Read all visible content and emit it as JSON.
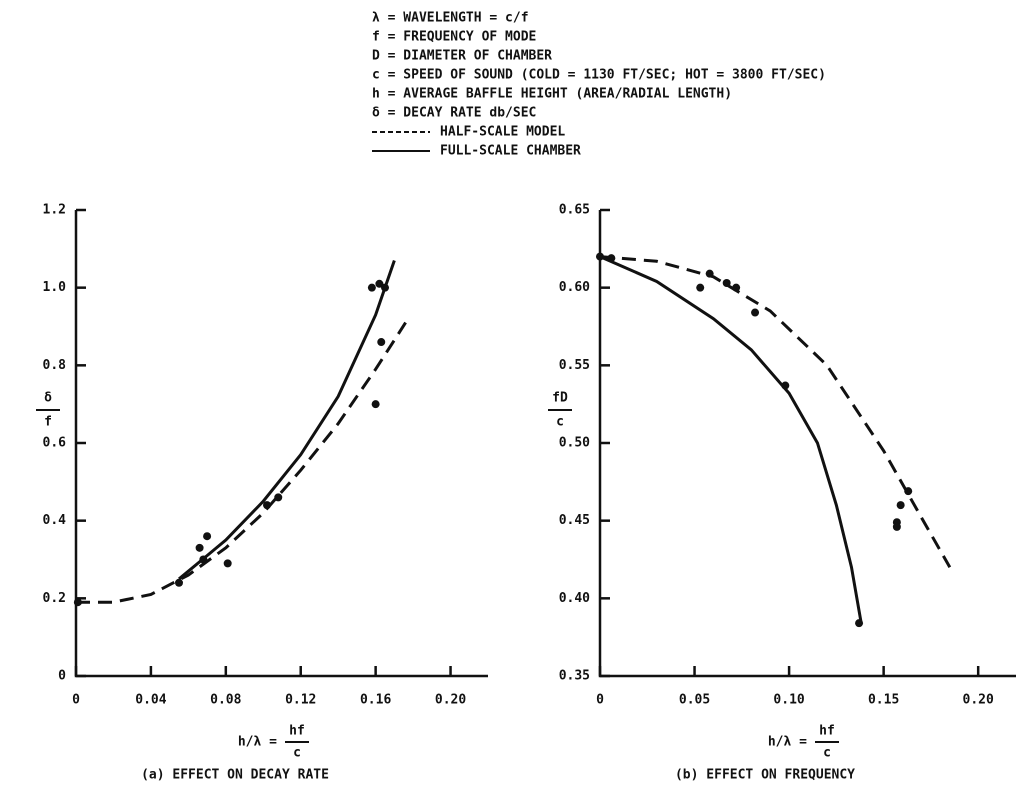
{
  "definitions": [
    "λ = WAVELENGTH = c/f",
    "f = FREQUENCY OF MODE",
    "D = DIAMETER OF CHAMBER",
    "c = SPEED OF SOUND (COLD = 1130 FT/SEC; HOT = 3800 FT/SEC)",
    "h = AVERAGE BAFFLE HEIGHT (AREA/RADIAL LENGTH)",
    "δ = DECAY RATE db/SEC"
  ],
  "legend": [
    {
      "name": "HALF-SCALE MODEL",
      "dash": true
    },
    {
      "name": "FULL-SCALE CHAMBER",
      "dash": false
    }
  ],
  "chart_data": [
    {
      "type": "scatter",
      "caption": "(a) EFFECT ON DECAY RATE",
      "ylabel": {
        "numerator": "δ",
        "denominator": "f"
      },
      "xlabel": {
        "prefix": "h/λ =",
        "numerator": "hf",
        "denominator": "c"
      },
      "xlim": [
        0,
        0.22
      ],
      "xticks": [
        0,
        0.04,
        0.08,
        0.12,
        0.16,
        {
          "value": 0.2,
          "label": "0.20"
        }
      ],
      "ylim": [
        0,
        1.2
      ],
      "yticks": [
        0,
        0.2,
        0.4,
        0.6,
        0.8,
        {
          "value": 1,
          "label": "1.0"
        },
        1.2
      ],
      "color": "#111",
      "series": [
        {
          "kind": "points",
          "x": [
            0.001,
            0.055,
            0.066,
            0.068,
            0.07,
            0.081,
            0.102,
            0.108,
            0.158,
            0.162,
            0.165,
            0.163,
            0.16
          ],
          "values": [
            0.19,
            0.24,
            0.33,
            0.3,
            0.36,
            0.29,
            0.44,
            0.46,
            1.0,
            1.01,
            1.0,
            0.86,
            0.7
          ]
        },
        {
          "kind": "line",
          "dash": true,
          "x": [
            0,
            0.02,
            0.04,
            0.06,
            0.08,
            0.1,
            0.12,
            0.14,
            0.16,
            0.176
          ],
          "values": [
            0.19,
            0.19,
            0.21,
            0.26,
            0.33,
            0.42,
            0.53,
            0.65,
            0.79,
            0.91
          ]
        },
        {
          "kind": "line",
          "dash": false,
          "x": [
            0.055,
            0.07,
            0.08,
            0.1,
            0.12,
            0.14,
            0.16,
            0.17
          ],
          "values": [
            0.25,
            0.31,
            0.35,
            0.45,
            0.57,
            0.72,
            0.93,
            1.07
          ]
        }
      ]
    },
    {
      "type": "scatter",
      "caption": "(b) EFFECT ON FREQUENCY",
      "ylabel": {
        "numerator": "fD",
        "denominator": "c"
      },
      "xlabel": {
        "prefix": "h/λ =",
        "numerator": "hf",
        "denominator": "c"
      },
      "xlim": [
        0,
        0.22
      ],
      "xticks": [
        0,
        0.05,
        {
          "value": 0.1,
          "label": "0.10"
        },
        0.15,
        {
          "value": 0.2,
          "label": "0.20"
        }
      ],
      "ylim": [
        0.35,
        0.65
      ],
      "yticks": [
        0.35,
        {
          "value": 0.4,
          "label": "0.40"
        },
        0.45,
        {
          "value": 0.5,
          "label": "0.50"
        },
        0.55,
        {
          "value": 0.6,
          "label": "0.60"
        },
        0.65
      ],
      "color": "#111",
      "series": [
        {
          "kind": "points",
          "x": [
            0,
            0.006,
            0.053,
            0.058,
            0.067,
            0.072,
            0.082,
            0.098,
            0.137,
            0.157,
            0.157,
            0.159,
            0.163
          ],
          "values": [
            0.62,
            0.619,
            0.6,
            0.609,
            0.603,
            0.6,
            0.584,
            0.537,
            0.384,
            0.449,
            0.446,
            0.46,
            0.469
          ]
        },
        {
          "kind": "line",
          "dash": true,
          "x": [
            0,
            0.03,
            0.06,
            0.09,
            0.12,
            0.15,
            0.17,
            0.185
          ],
          "values": [
            0.62,
            0.617,
            0.607,
            0.585,
            0.55,
            0.495,
            0.452,
            0.42
          ]
        },
        {
          "kind": "line",
          "dash": false,
          "x": [
            0,
            0.03,
            0.06,
            0.08,
            0.1,
            0.115,
            0.125,
            0.133,
            0.138
          ],
          "values": [
            0.62,
            0.604,
            0.58,
            0.56,
            0.532,
            0.5,
            0.46,
            0.42,
            0.385
          ]
        }
      ]
    }
  ]
}
